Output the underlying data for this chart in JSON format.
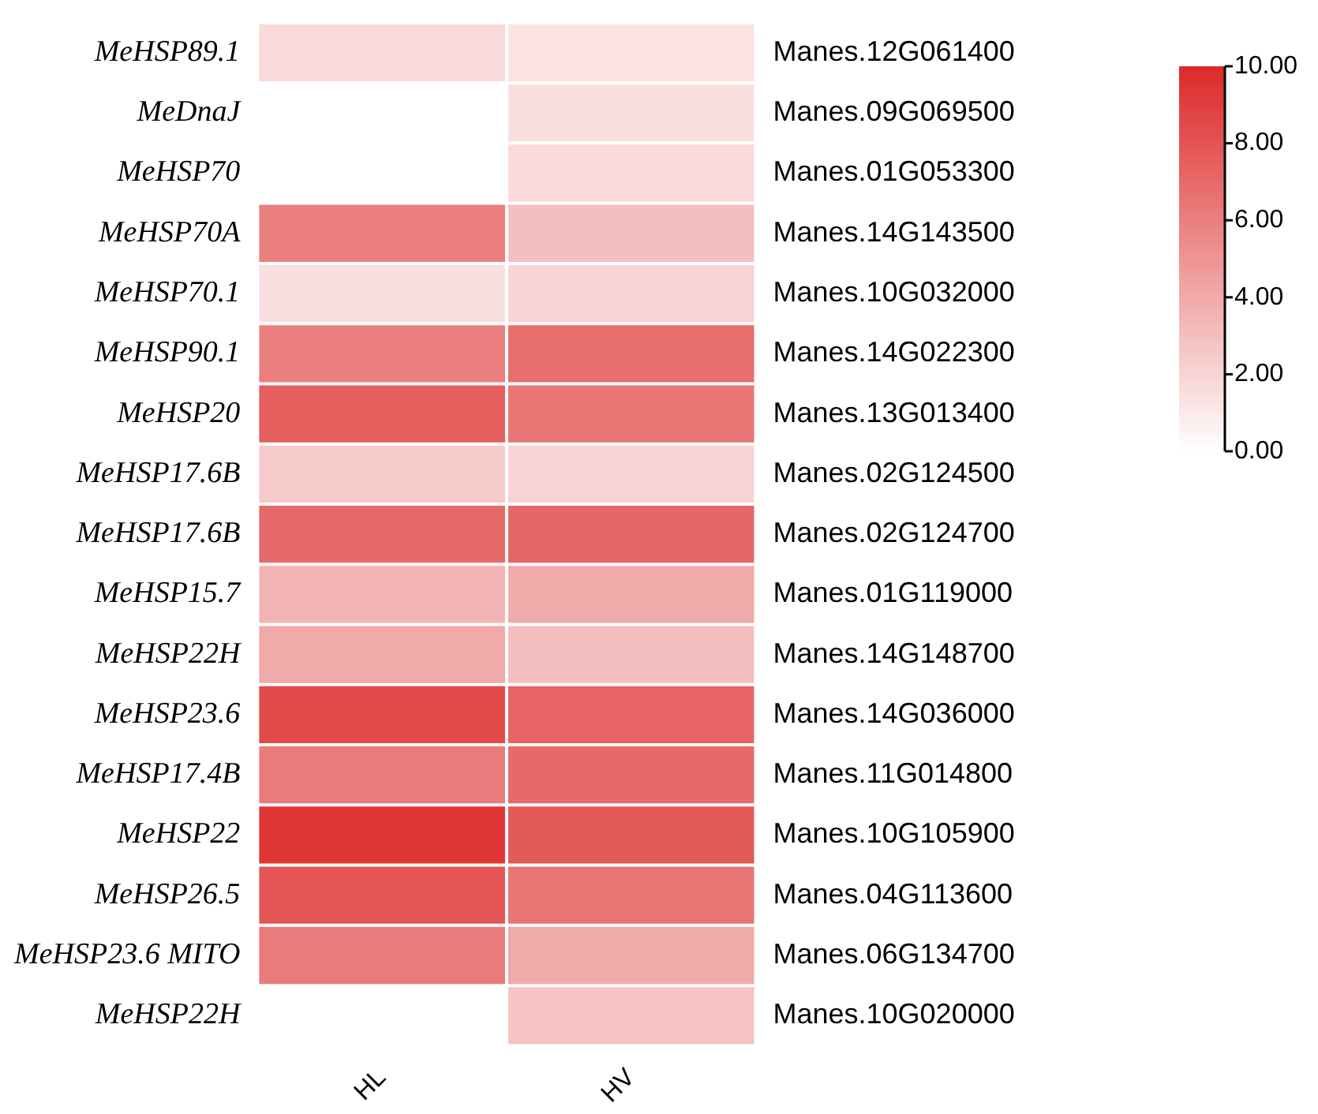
{
  "chart_data": {
    "type": "heatmap",
    "categories": [
      "HL",
      "HV"
    ],
    "y_categories": [
      "MeHSP89.1",
      "MeDnaJ",
      "MeHSP70",
      "MeHSP70A",
      "MeHSP70.1",
      "MeHSP90.1",
      "MeHSP20",
      "MeHSP17.6B",
      "MeHSP17.6B",
      "MeHSP15.7",
      "MeHSP22H",
      "MeHSP23.6",
      "MeHSP17.4B",
      "MeHSP22",
      "MeHSP26.5",
      "MeHSP23.6 MITO",
      "MeHSP22H"
    ],
    "y2_categories": [
      "Manes.12G061400",
      "Manes.09G069500",
      "Manes.01G053300",
      "Manes.14G143500",
      "Manes.10G032000",
      "Manes.14G022300",
      "Manes.13G013400",
      "Manes.02G124500",
      "Manes.02G124700",
      "Manes.01G119000",
      "Manes.14G148700",
      "Manes.14G036000",
      "Manes.11G014800",
      "Manes.10G105900",
      "Manes.04G113600",
      "Manes.06G134700",
      "Manes.10G020000"
    ],
    "cells": [
      [
        1.8,
        1.3
      ],
      [
        null,
        1.5
      ],
      [
        null,
        1.7
      ],
      [
        6.0,
        3.0
      ],
      [
        1.5,
        2.0
      ],
      [
        6.0,
        6.8
      ],
      [
        7.5,
        6.5
      ],
      [
        2.5,
        2.0
      ],
      [
        7.0,
        7.2
      ],
      [
        3.5,
        4.0
      ],
      [
        4.0,
        3.0
      ],
      [
        8.5,
        7.3
      ],
      [
        6.2,
        7.0
      ],
      [
        9.5,
        7.8
      ],
      [
        8.0,
        6.5
      ],
      [
        6.2,
        4.0
      ],
      [
        null,
        2.8
      ]
    ],
    "clim": [
      0,
      10
    ],
    "cticks": [
      {
        "value": 0,
        "label": "0.00"
      },
      {
        "value": 2,
        "label": "2.00"
      },
      {
        "value": 4,
        "label": "4.00"
      },
      {
        "value": 6,
        "label": "6.00"
      },
      {
        "value": 8,
        "label": "8.00"
      },
      {
        "value": 10,
        "label": "10.00"
      }
    ]
  }
}
